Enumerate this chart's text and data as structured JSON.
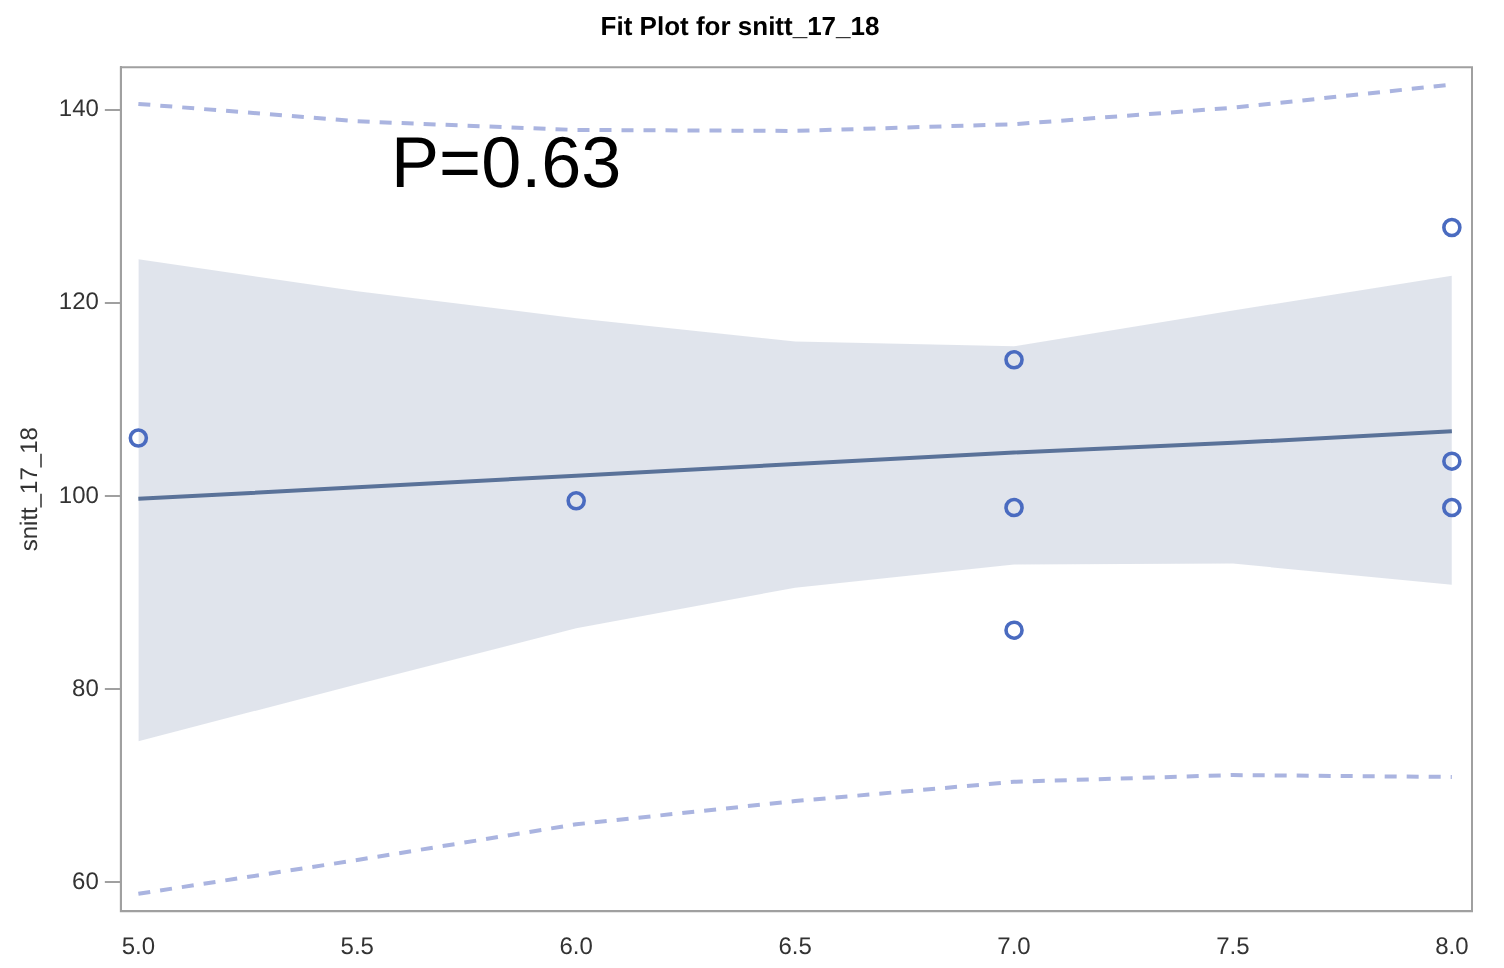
{
  "chart_data": {
    "type": "scatter",
    "title": "Fit Plot for snitt_17_18",
    "ylabel": "snitt_17_18",
    "annotations": [
      "P=0.63"
    ],
    "x": [
      5,
      6,
      7,
      7,
      7,
      8,
      8,
      8
    ],
    "series": [
      {
        "type": "scatter",
        "color": "#4a6bc0",
        "values": [
          106.0,
          99.5,
          114.1,
          98.8,
          86.1,
          127.8,
          103.6,
          98.8
        ],
        "marker": "circle"
      },
      {
        "type": "line",
        "color": "#5a7299",
        "x": [
          5,
          5.5,
          6,
          6.5,
          7,
          7.5,
          8
        ],
        "values": [
          99.7,
          100.9,
          102.1,
          103.3,
          104.5,
          105.5,
          106.7
        ],
        "lower": [
          74.6,
          80.5,
          86.3,
          90.5,
          92.9,
          93.0,
          90.8
        ],
        "upper": [
          124.5,
          121.2,
          118.4,
          116.0,
          115.5,
          119.2,
          122.8
        ],
        "marker": "none"
      },
      {
        "type": "line",
        "color": "#aab4e0",
        "x": [
          5,
          5.5,
          6,
          6.5,
          7,
          7.5,
          8
        ],
        "values": [
          140.6,
          138.8,
          137.9,
          137.8,
          138.5,
          140.2,
          142.6
        ],
        "line_style": "dashed",
        "marker": "none"
      },
      {
        "type": "line",
        "color": "#aab4e0",
        "x": [
          5,
          5.5,
          6,
          6.5,
          7,
          7.5,
          8
        ],
        "values": [
          58.8,
          62.3,
          66.0,
          68.4,
          70.4,
          71.1,
          70.9
        ],
        "line_style": "dashed",
        "marker": "none"
      }
    ],
    "xlim": [
      4.96,
      8.046
    ],
    "ylim": [
      57,
      144.4
    ],
    "xticks": [
      {
        "value": 5,
        "label": "5.0"
      },
      5.5,
      {
        "value": 6,
        "label": "6.0"
      },
      6.5,
      {
        "value": 7,
        "label": "7.0"
      },
      7.5,
      {
        "value": 8,
        "label": "8.0"
      }
    ],
    "yticks": [
      60,
      80,
      100,
      120,
      140
    ],
    "grid": false,
    "legend": false
  }
}
